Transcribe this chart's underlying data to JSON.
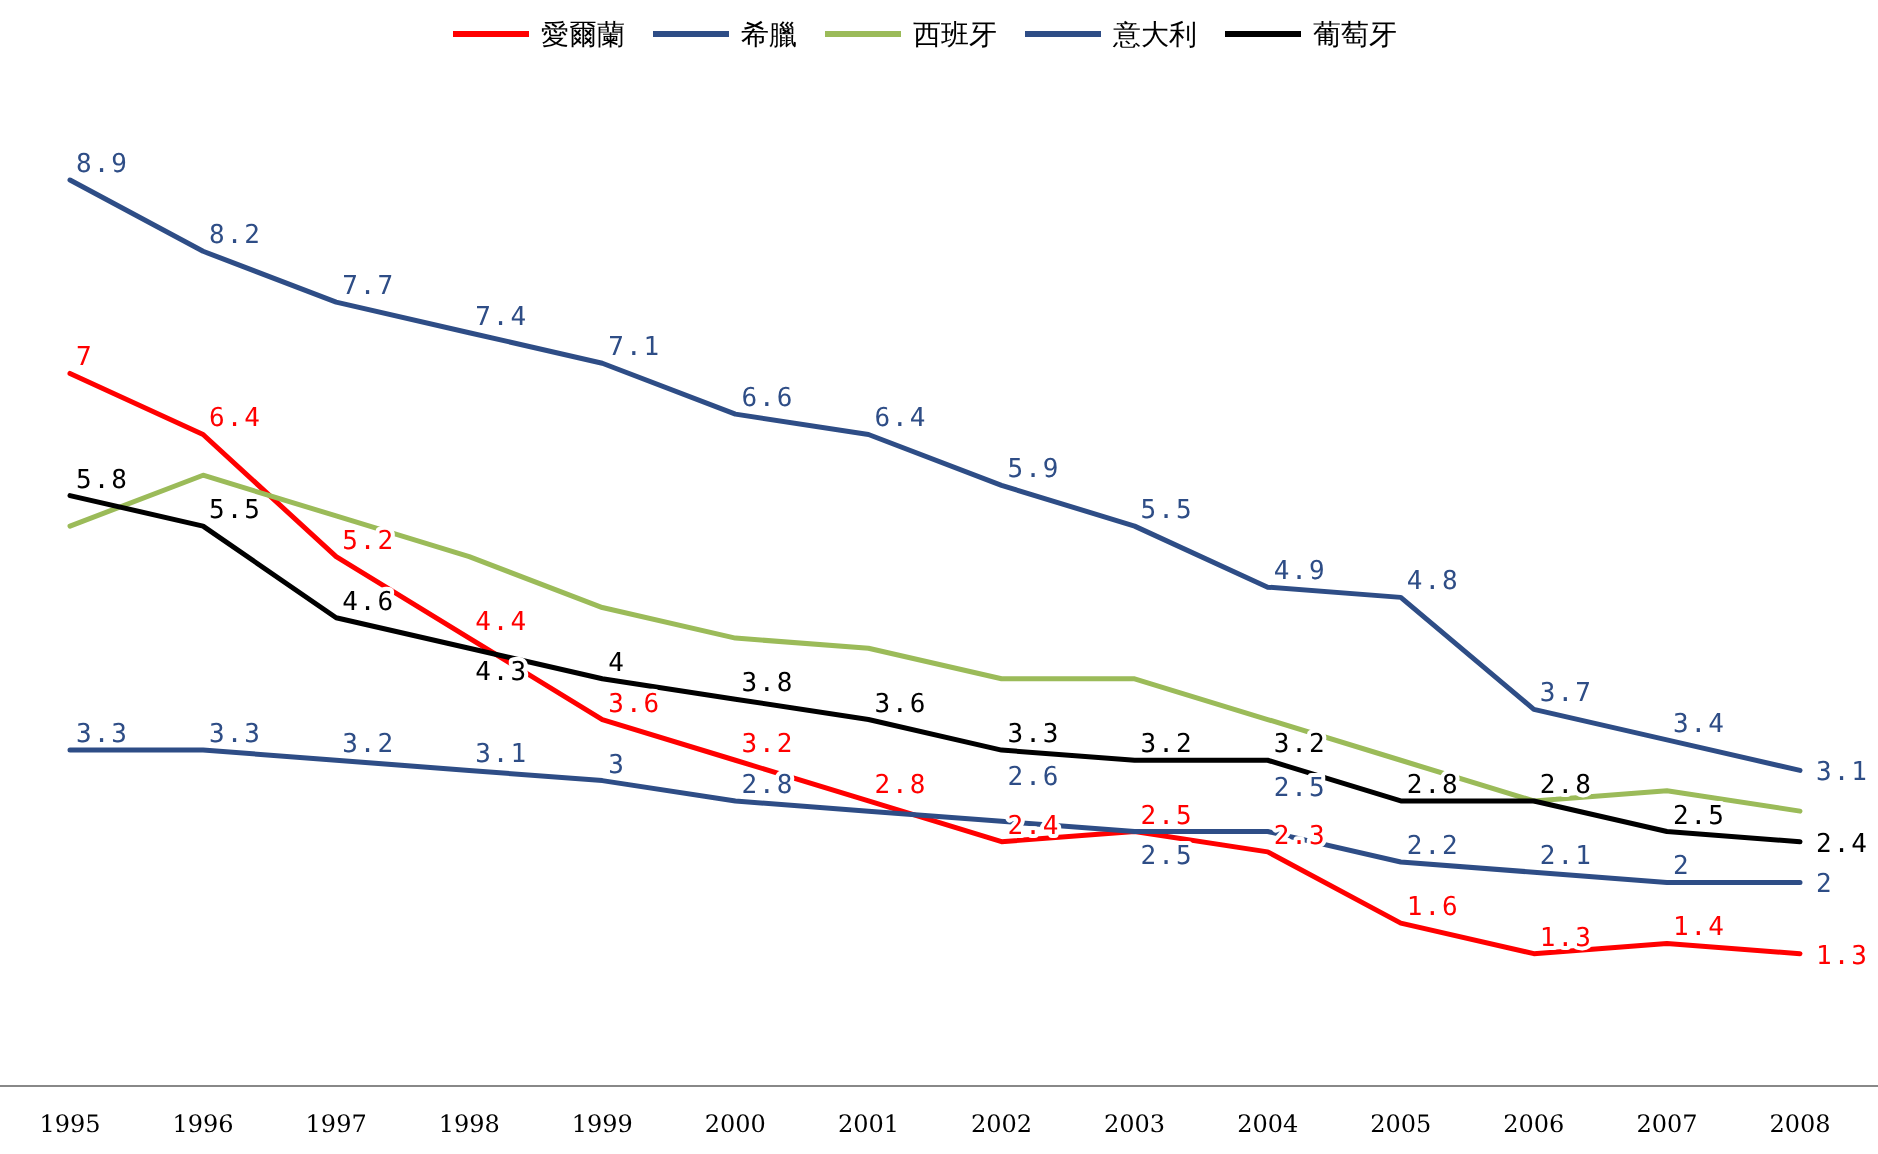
{
  "chart_data": {
    "type": "line",
    "categories": [
      "1995",
      "1996",
      "1997",
      "1998",
      "1999",
      "2000",
      "2001",
      "2002",
      "2003",
      "2004",
      "2005",
      "2006",
      "2007",
      "2008"
    ],
    "series": [
      {
        "name": "愛爾蘭",
        "color": "#ff0000",
        "values": [
          7,
          6.4,
          5.2,
          4.4,
          3.6,
          3.2,
          2.8,
          2.4,
          2.5,
          2.3,
          1.6,
          1.3,
          1.4,
          1.3
        ],
        "value_labels": [
          "7",
          "6.4",
          "5.2",
          "4.4",
          "3.6",
          "3.2",
          "2.8",
          "2.4",
          "2.5",
          "2.3",
          "1.6",
          "1.3",
          "1.4",
          "1.3"
        ]
      },
      {
        "name": "希臘",
        "color": "#2e4d86",
        "values": [
          8.9,
          8.2,
          7.7,
          7.4,
          7.1,
          6.6,
          6.4,
          5.9,
          5.5,
          4.9,
          4.8,
          3.7,
          3.4,
          3.1
        ],
        "value_labels": [
          "8.9",
          "8.2",
          "7.7",
          "7.4",
          "7.1",
          "6.6",
          "6.4",
          "5.9",
          "5.5",
          "4.9",
          "4.8",
          "3.7",
          "3.4",
          "3.1"
        ]
      },
      {
        "name": "西班牙",
        "color": "#9bbb59",
        "values": [
          5.5,
          6.0,
          5.6,
          5.2,
          4.7,
          4.4,
          4.3,
          4.0,
          4.0,
          3.6,
          3.2,
          2.8,
          2.9,
          2.7
        ]
      },
      {
        "name": "意大利",
        "color": "#2e4d86",
        "values": [
          3.3,
          3.3,
          3.2,
          3.1,
          3,
          2.8,
          2.7,
          2.6,
          2.5,
          2.5,
          2.2,
          2.1,
          2,
          2
        ],
        "value_labels": [
          "3.3",
          "3.3",
          "3.2",
          "3.1",
          "3",
          "2.8",
          null,
          "2.6",
          "2.5",
          "2.5",
          "2.2",
          "2.1",
          "2",
          "2"
        ]
      },
      {
        "name": "葡萄牙",
        "color": "#000000",
        "values": [
          5.8,
          5.5,
          4.6,
          4.3,
          4,
          3.8,
          3.6,
          3.3,
          3.2,
          3.2,
          2.8,
          2.8,
          2.5,
          2.4
        ],
        "value_labels": [
          "5.8",
          "5.5",
          "4.6",
          "4.3",
          "4",
          "3.8",
          "3.6",
          "3.3",
          "3.2",
          "3.2",
          "2.8",
          "2.8",
          "2.5",
          "2.4"
        ]
      }
    ],
    "legend": "top",
    "marker": "none",
    "line_style": "solid"
  }
}
